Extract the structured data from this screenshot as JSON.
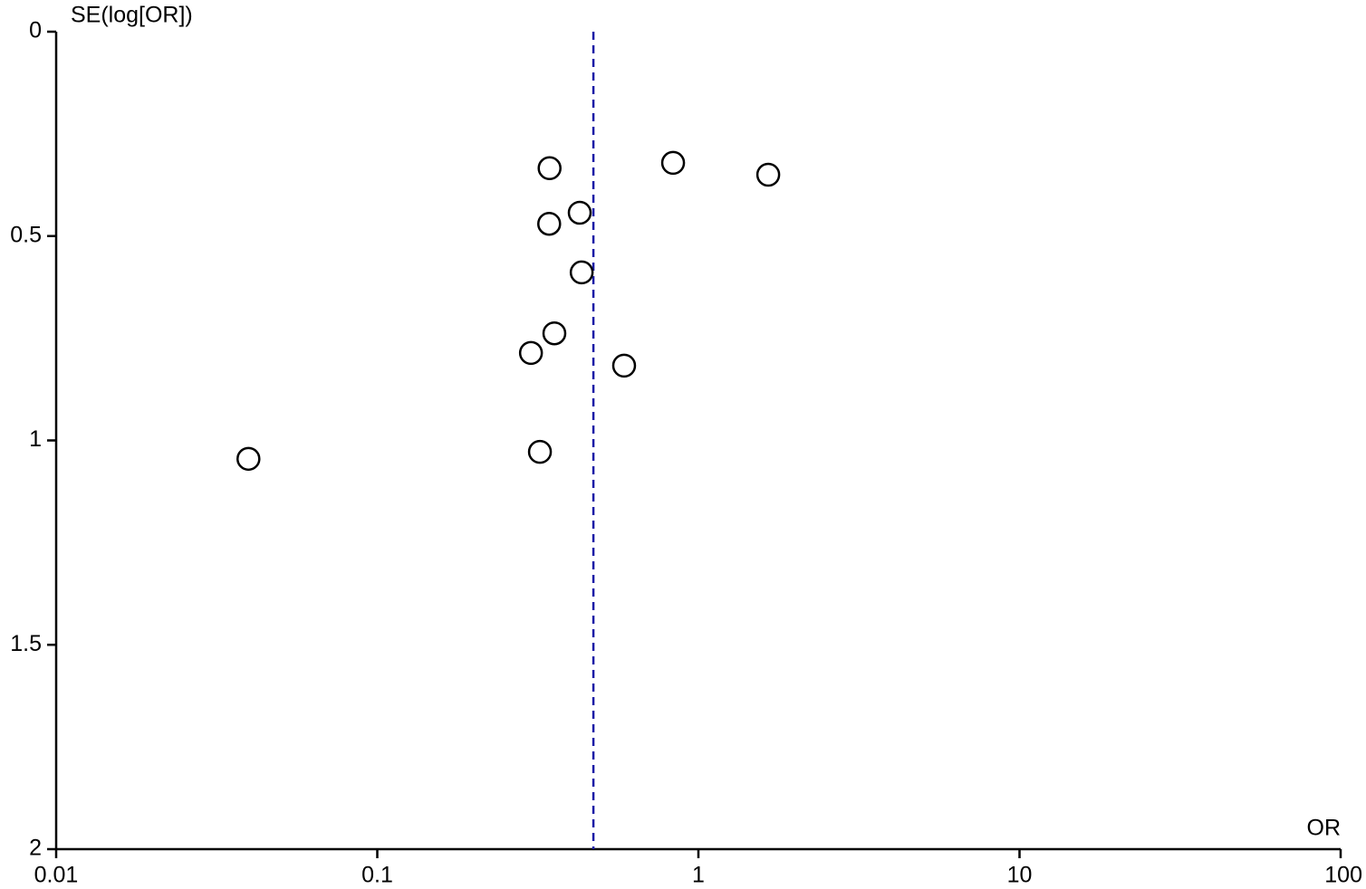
{
  "chart_data": {
    "type": "scatter",
    "x_label": "OR",
    "y_label": "SE(log[OR])",
    "x": [
      0.344,
      0.834,
      1.65,
      0.427,
      0.343,
      0.433,
      0.356,
      0.301,
      0.587,
      0.321,
      0.0397
    ],
    "values": [
      0.334,
      0.321,
      0.35,
      0.443,
      0.47,
      0.589,
      0.738,
      0.786,
      0.817,
      1.028,
      1.045
    ],
    "marker_color": "#000000",
    "reference_x": 0.471,
    "reference_color": "#1a1aa6",
    "xscale": "log",
    "xlim": [
      0.01,
      100
    ],
    "xticks": [
      0.01,
      0.1,
      1,
      10,
      100
    ],
    "ylim": [
      0,
      2
    ],
    "yticks": [
      0,
      0.5,
      1,
      1.5,
      2
    ],
    "y_inverted": true
  }
}
